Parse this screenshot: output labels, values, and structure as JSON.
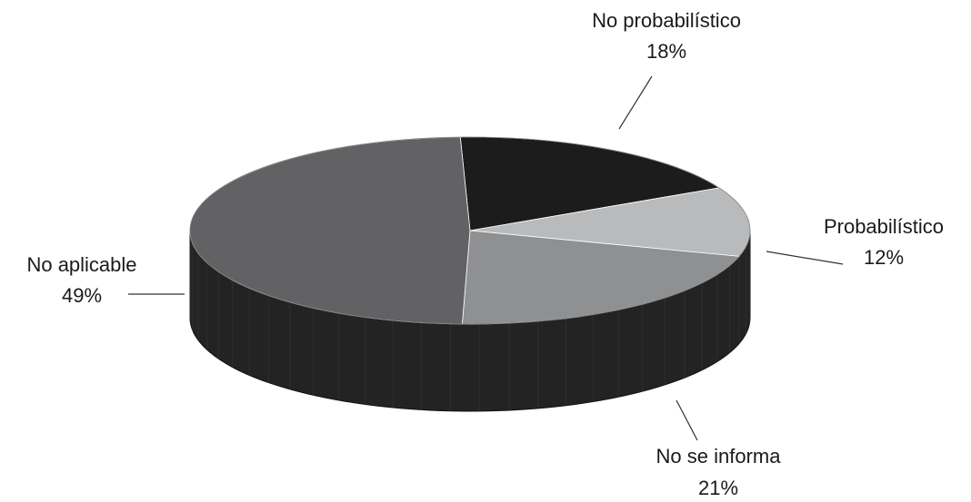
{
  "chart_data": {
    "type": "pie",
    "title": "",
    "categories": [
      "No probabilístico",
      "Probabilístico",
      "No se informa",
      "No aplicable"
    ],
    "values": [
      18,
      12,
      21,
      49
    ],
    "value_labels": [
      "18%",
      "12%",
      "21%",
      "49%"
    ],
    "colors": [
      "#1c1c1c",
      "#b9babb",
      "#8f9092",
      "#626264"
    ],
    "side_color": "#232323",
    "style": "3d-tilted",
    "legend": "none"
  }
}
